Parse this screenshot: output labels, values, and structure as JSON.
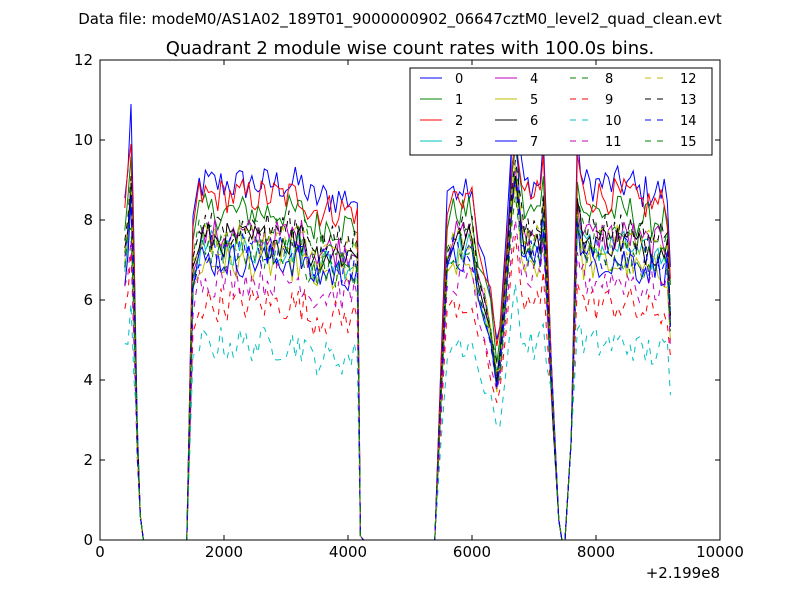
{
  "suptitle": "Data file: modeM0/AS1A02_189T01_9000000902_06647cztM0_level2_quad_clean.evt",
  "chart_data": {
    "type": "line",
    "title": "Quadrant 2 module wise count rates with 100.0s bins.",
    "xlabel": "",
    "ylabel": "",
    "x_offset_label": "+2.199e8",
    "xlim": [
      0,
      10000
    ],
    "ylim": [
      0,
      12
    ],
    "xticks": [
      0,
      2000,
      4000,
      6000,
      8000,
      10000
    ],
    "xtick_labels": [
      "0",
      "2000",
      "4000",
      "6000",
      "8000",
      "10000"
    ],
    "yticks": [
      0,
      2,
      4,
      6,
      8,
      10,
      12
    ],
    "ytick_labels": [
      "0",
      "2",
      "4",
      "6",
      "8",
      "10",
      "12"
    ],
    "legend_position": "top-right",
    "x_segments": [
      [
        400,
        700
      ],
      [
        1400,
        4200
      ],
      [
        5400,
        7500
      ],
      [
        7500,
        9200
      ]
    ],
    "series": [
      {
        "name": "0",
        "color": "#0000ff",
        "dash": "solid",
        "level": 8.9,
        "peak_first": 10.9,
        "peak_mid": 10.8
      },
      {
        "name": "1",
        "color": "#008000",
        "dash": "solid",
        "level": 8.2,
        "peak_first": 9.6,
        "peak_mid": 9.8
      },
      {
        "name": "2",
        "color": "#ff0000",
        "dash": "solid",
        "level": 8.6,
        "peak_first": 9.9,
        "peak_mid": 10.0
      },
      {
        "name": "3",
        "color": "#00bfbf",
        "dash": "solid",
        "level": 7.3,
        "peak_first": 8.8,
        "peak_mid": 9.0
      },
      {
        "name": "4",
        "color": "#bf00bf",
        "dash": "solid",
        "level": 7.6,
        "peak_first": 9.0,
        "peak_mid": 9.3
      },
      {
        "name": "5",
        "color": "#bfbf00",
        "dash": "solid",
        "level": 6.9,
        "peak_first": 8.6,
        "peak_mid": 8.9
      },
      {
        "name": "6",
        "color": "#000000",
        "dash": "solid",
        "level": 7.5,
        "peak_first": 8.8,
        "peak_mid": 9.1
      },
      {
        "name": "7",
        "color": "#0000ff",
        "dash": "solid",
        "level": 7.0,
        "peak_first": 8.5,
        "peak_mid": 10.9
      },
      {
        "name": "8",
        "color": "#008000",
        "dash": "dashed",
        "level": 7.6,
        "peak_first": 9.0,
        "peak_mid": 9.3
      },
      {
        "name": "9",
        "color": "#ff0000",
        "dash": "dashed",
        "level": 5.9,
        "peak_first": 7.2,
        "peak_mid": 7.6
      },
      {
        "name": "10",
        "color": "#00bfbf",
        "dash": "dashed",
        "level": 4.9,
        "peak_first": 5.9,
        "peak_mid": 6.4
      },
      {
        "name": "11",
        "color": "#bf00bf",
        "dash": "dashed",
        "level": 6.5,
        "peak_first": 7.5,
        "peak_mid": 8.0
      },
      {
        "name": "12",
        "color": "#bfbf00",
        "dash": "dashed",
        "level": 7.5,
        "peak_first": 9.0,
        "peak_mid": 9.4
      },
      {
        "name": "13",
        "color": "#000000",
        "dash": "dashed",
        "level": 7.8,
        "peak_first": 9.1,
        "peak_mid": 9.5
      },
      {
        "name": "14",
        "color": "#0000ff",
        "dash": "dashed",
        "level": 7.2,
        "peak_first": 8.6,
        "peak_mid": 9.0
      },
      {
        "name": "15",
        "color": "#008000",
        "dash": "dashed",
        "level": 7.1,
        "peak_first": 7.8,
        "peak_mid": 8.6
      }
    ]
  }
}
